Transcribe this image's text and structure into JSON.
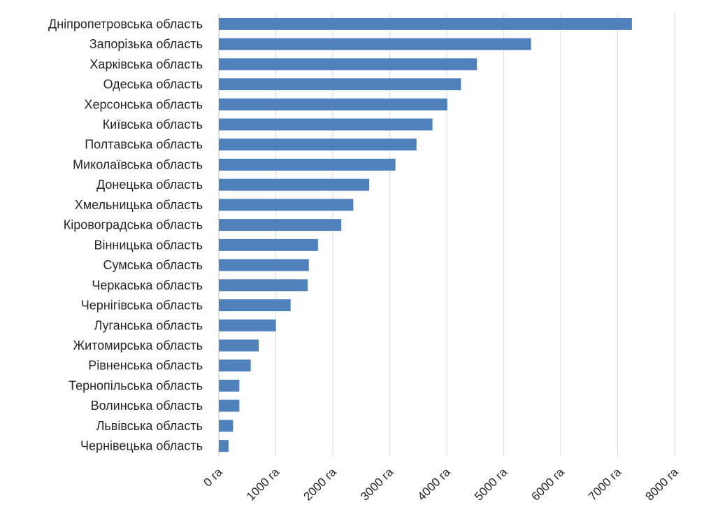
{
  "chart_data": {
    "type": "bar",
    "orientation": "horizontal",
    "title": "",
    "xlabel": "",
    "ylabel": "",
    "xlim": [
      0,
      8000
    ],
    "x_ticks": [
      "0 га",
      "1000 га",
      "2000 га",
      "3000 га",
      "4000 га",
      "5000 га",
      "6000 га",
      "7000 га",
      "8000 га"
    ],
    "grid": true,
    "bar_color": "#4f81bd",
    "categories": [
      "Дніпропетровська область",
      "Запорізька область",
      "Харківська область",
      "Одеська область",
      "Херсонська область",
      "Київська область",
      "Полтавська область",
      "Миколаївська область",
      "Донецька область",
      "Хмельницька область",
      "Кіровоградська область",
      "Вінницька область",
      "Сумська область",
      "Черкаська область",
      "Чернігівська область",
      "Луганська область",
      "Житомирська область",
      "Рівненська область",
      "Тернопільська область",
      "Волинська область",
      "Львівська область",
      "Чернівецька область"
    ],
    "values": [
      7250,
      5480,
      4530,
      4250,
      4010,
      3750,
      3470,
      3100,
      2640,
      2360,
      2150,
      1740,
      1580,
      1560,
      1260,
      1000,
      700,
      560,
      360,
      360,
      250,
      170
    ]
  }
}
